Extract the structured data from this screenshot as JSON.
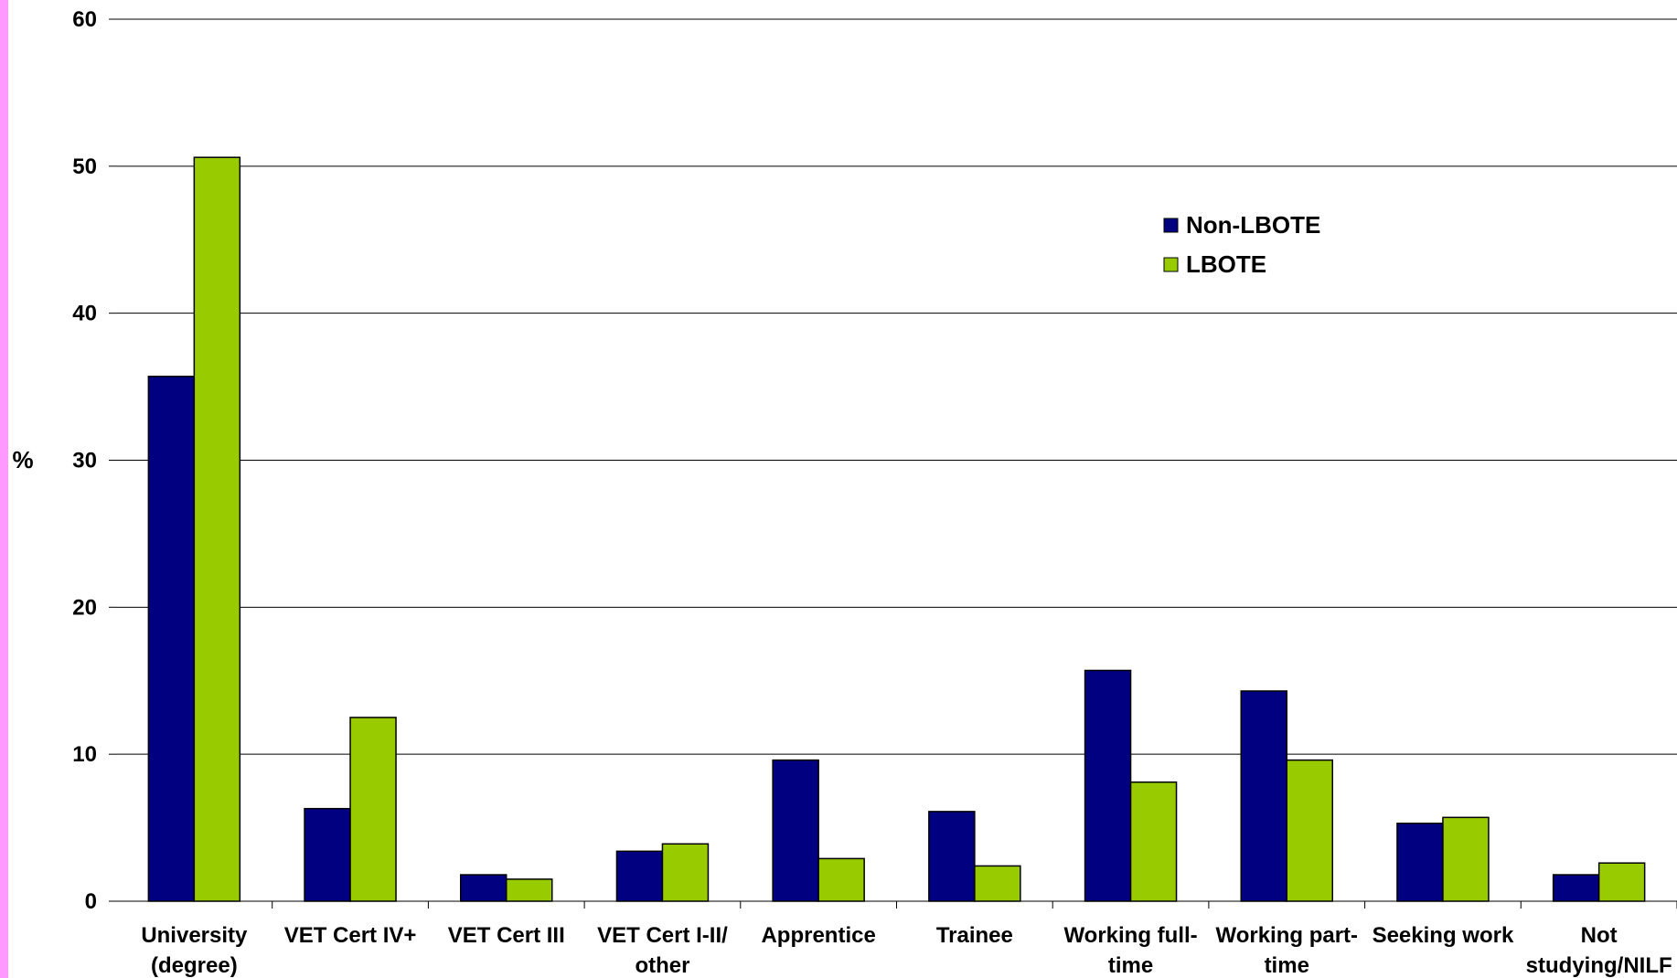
{
  "colors": {
    "strip": "#ff99ff",
    "non_lbote": "#000080",
    "lbote": "#99cc00",
    "grid": "#000000"
  },
  "chart_data": {
    "type": "bar",
    "ylabel": "%",
    "xlabel": "",
    "title": "",
    "ylim": [
      0,
      60
    ],
    "yticks": [
      0,
      10,
      20,
      30,
      40,
      50,
      60
    ],
    "grid": true,
    "legend_position": "top-right",
    "categories": [
      [
        "University",
        "(degree)"
      ],
      [
        "VET Cert IV+"
      ],
      [
        "VET Cert III"
      ],
      [
        "VET Cert I-II/",
        "other"
      ],
      [
        "Apprentice"
      ],
      [
        "Trainee"
      ],
      [
        "Working full-",
        "time"
      ],
      [
        "Working part-",
        "time"
      ],
      [
        "Seeking work"
      ],
      [
        "Not",
        "studying/NILF"
      ]
    ],
    "series": [
      {
        "name": "Non-LBOTE",
        "color": "#000080",
        "values": [
          35.7,
          6.3,
          1.8,
          3.4,
          9.6,
          6.1,
          15.7,
          14.3,
          5.3,
          1.8
        ]
      },
      {
        "name": "LBOTE",
        "color": "#99cc00",
        "values": [
          50.6,
          12.5,
          1.5,
          3.9,
          2.9,
          2.4,
          8.1,
          9.6,
          5.7,
          2.6
        ]
      }
    ]
  }
}
